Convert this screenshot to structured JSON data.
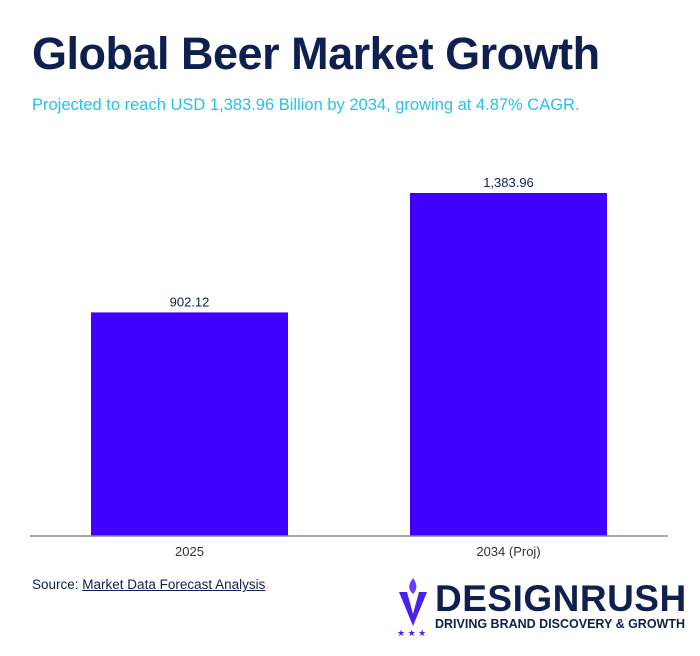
{
  "header": {
    "title": "Global Beer Market Growth",
    "subtitle": "Projected to reach USD 1,383.96 Billion by 2034, growing at 4.87% CAGR."
  },
  "chart_data": {
    "type": "bar",
    "title": "Global Beer Market Growth",
    "categories": [
      "2025",
      "2034 (Proj)"
    ],
    "values": [
      902.12,
      1383.96
    ],
    "value_labels": [
      "902.12",
      "1,383.96"
    ],
    "xlabel": "",
    "ylabel": "",
    "ylim": [
      0,
      1383.96
    ],
    "grid": false,
    "bar_color": "#4200ff"
  },
  "footer": {
    "source_label": "Source:",
    "source_link": "Market Data Forecast Analysis"
  },
  "logo": {
    "name": "DESIGNRUSH",
    "tagline": "DRIVING BRAND DISCOVERY & GROWTH"
  },
  "colors": {
    "title": "#0f1f4f",
    "subtitle": "#26c0ea",
    "bar": "#4200ff"
  }
}
